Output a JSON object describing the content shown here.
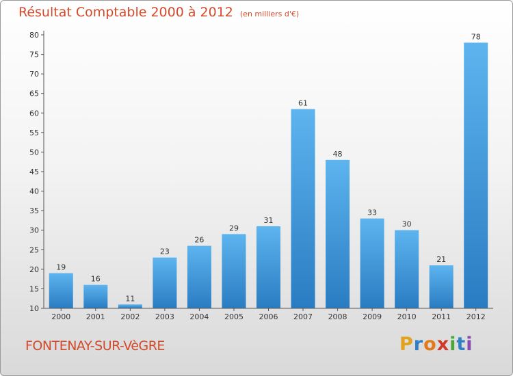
{
  "title": "Résultat Comptable 2000 à 2012",
  "unit": "(en milliers d'€)",
  "commune": "FONTENAY-SUR-VèGRE",
  "logo": {
    "letters": [
      "P",
      "r",
      "o",
      "x",
      "i",
      "t",
      "i"
    ],
    "colors": [
      "#e2a21b",
      "#2f80c6",
      "#e07a1a",
      "#d03a2a",
      "#4aa83a",
      "#2f80c6",
      "#8a4ab0"
    ]
  },
  "colors": {
    "bar_light": "#5db4ee",
    "bar_dark": "#2a7cc2",
    "axis": "#555555",
    "grid": "#aaaaaa"
  },
  "chart_data": {
    "type": "bar",
    "title": "Résultat Comptable 2000 à 2012",
    "xlabel": "",
    "ylabel": "",
    "categories": [
      "2000",
      "2001",
      "2002",
      "2003",
      "2004",
      "2005",
      "2006",
      "2007",
      "2008",
      "2009",
      "2010",
      "2011",
      "2012"
    ],
    "values": [
      19,
      16,
      11,
      23,
      26,
      29,
      31,
      61,
      48,
      33,
      30,
      21,
      78
    ],
    "ylim": [
      10,
      80
    ],
    "yticks": [
      10,
      15,
      20,
      25,
      30,
      35,
      40,
      45,
      50,
      55,
      60,
      65,
      70,
      75,
      80
    ],
    "grid": false,
    "data_labels": true
  }
}
